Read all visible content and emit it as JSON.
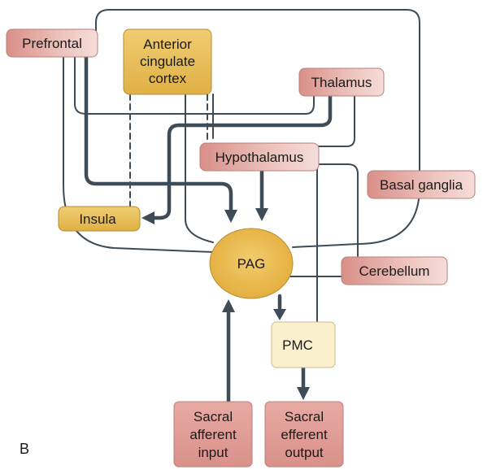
{
  "panel_label": "B",
  "nodes": {
    "prefrontal": "Prefrontal",
    "acc": [
      "Anterior",
      "cingulate",
      "cortex"
    ],
    "thalamus": "Thalamus",
    "hypothalamus": "Hypothalamus",
    "basal_ganglia": "Basal ganglia",
    "insula": "Insula",
    "pag": "PAG",
    "cerebellum": "Cerebellum",
    "pmc": "PMC",
    "sacral_afferent": [
      "Sacral",
      "afferent",
      "input"
    ],
    "sacral_efferent": [
      "Sacral",
      "efferent",
      "output"
    ]
  },
  "colors": {
    "line": "#3d4c57",
    "pink_node": "#e3a8a2",
    "yellow_node": "#e6bd5a",
    "pag_fill": "#eab94f",
    "pmc_fill": "#fbf1cf"
  }
}
